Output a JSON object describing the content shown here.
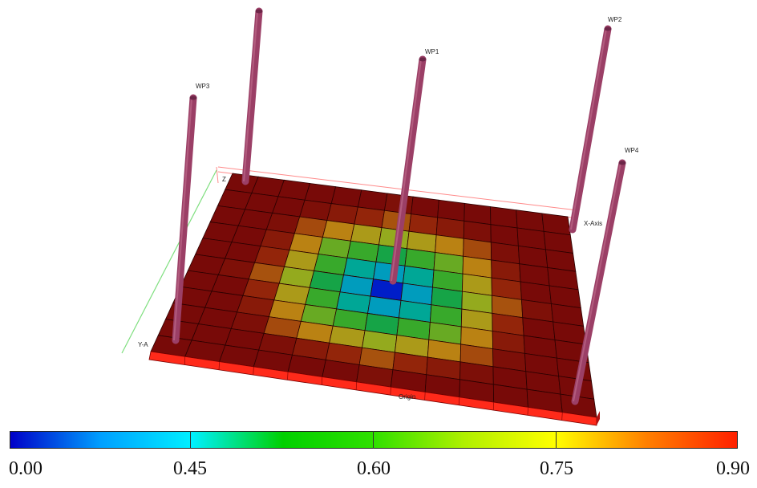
{
  "scene": {
    "well_labels": {
      "wp1": "WP1",
      "wp2": "WP2",
      "wp3": "WP3",
      "wp4": "WP4"
    },
    "axis_labels": {
      "z": "Z",
      "x": "X-Axis",
      "y": "Y-A",
      "origin": "Origin"
    },
    "grid": {
      "cols": 13,
      "rows": 11,
      "center_col": 6,
      "center_row": 5
    },
    "colors": {
      "slab_top_edge": "#ff2a1a",
      "cell_border": "#2b0000",
      "well": "#9b3f66",
      "well_top": "#6d2648",
      "box_lines": "#ff8a8a",
      "y_axis": "#7fdf7f"
    }
  },
  "colorbar": {
    "labels": [
      "0.00",
      "0.45",
      "0.60",
      "0.75",
      "0.90"
    ],
    "stops": [
      "#0000c8",
      "#00a0ff",
      "#00f0ff",
      "#00d000",
      "#30e000",
      "#b0f000",
      "#ffff00",
      "#ff8000",
      "#ff2000"
    ]
  }
}
